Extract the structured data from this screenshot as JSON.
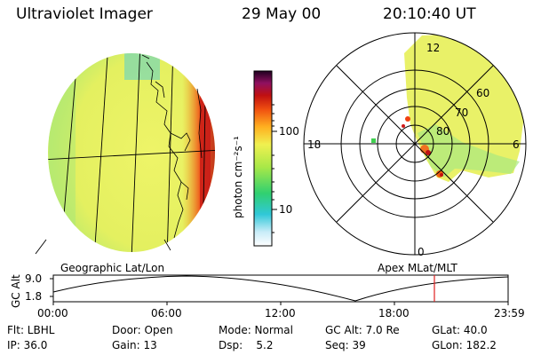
{
  "header": {
    "instrument": "Ultraviolet Imager",
    "date": "29 May 00",
    "time": "20:10:40 UT"
  },
  "colorbar": {
    "unit_label": "photon cm⁻²s⁻¹",
    "ticks": [
      "100",
      "10"
    ],
    "scale": "log"
  },
  "polar_plot": {
    "mlt_labels": [
      "12",
      "18",
      "6",
      "0"
    ],
    "lat_labels": [
      "60",
      "70",
      "80"
    ]
  },
  "map_labels": {
    "left": "Geographic Lat/Lon",
    "right": "Apex MLat/MLT"
  },
  "altitude_plot": {
    "ylabel": "GC Alt",
    "yticks": [
      "9.0",
      "1.8"
    ],
    "xticks": [
      "00:00",
      "06:00",
      "12:00",
      "18:00",
      "23:59"
    ],
    "marker_time": "20:10:40"
  },
  "info": {
    "row1": [
      "Flt: LBHL",
      "Door: Open",
      "Mode: Normal",
      "GC Alt: 7.0 Re",
      "GLat:  40.0"
    ],
    "row2": [
      "IP: 36.0",
      "Gain: 13",
      "Dsp:    5.2",
      "Seq: 39",
      "GLon: 182.2"
    ]
  },
  "colors": {
    "marker": "#e02020",
    "disk": "#e8f060",
    "accent": "#f24a1a"
  }
}
